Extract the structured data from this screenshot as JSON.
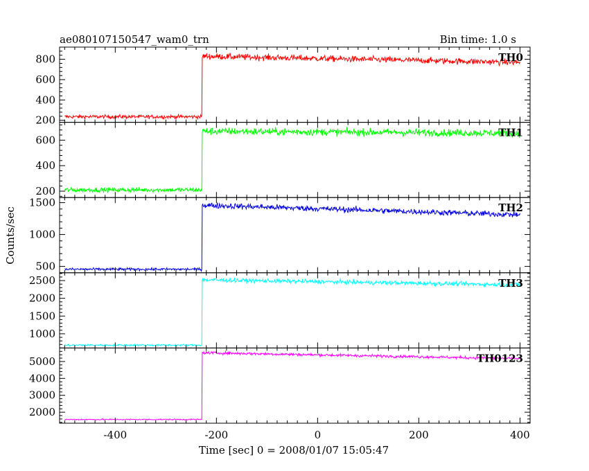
{
  "title": "ae080107150547_wam0_trn",
  "bin_time": "Bin time: 1.0 s",
  "xlabel": "Time [sec] 0 = 2008/01/07 15:05:47",
  "ylabel": "Counts/sec",
  "chart_data": {
    "type": "line",
    "xlim": [
      -510,
      420
    ],
    "x_ticks": [
      -400,
      -200,
      0,
      200,
      400
    ],
    "event_time": -228,
    "x_range": [
      -500,
      400
    ],
    "panels": [
      {
        "name": "TH0",
        "color": "#ff0000",
        "ylim": [
          180,
          920
        ],
        "yticks": [
          200,
          400,
          600,
          800
        ],
        "pre_level": 235,
        "post_start": 830,
        "post_end": 770,
        "noise": 30,
        "pre_noise": 18
      },
      {
        "name": "TH1",
        "color": "#00ff00",
        "ylim": [
          150,
          740
        ],
        "yticks": [
          200,
          400,
          600
        ],
        "pre_level": 210,
        "post_start": 670,
        "post_end": 655,
        "noise": 28,
        "pre_noise": 18
      },
      {
        "name": "TH2",
        "color": "#0000dd",
        "ylim": [
          400,
          1580
        ],
        "yticks": [
          500,
          1000,
          1500
        ],
        "pre_level": 455,
        "post_start": 1460,
        "post_end": 1310,
        "noise": 45,
        "pre_noise": 20
      },
      {
        "name": "TH3",
        "color": "#00ffff",
        "ylim": [
          600,
          2720
        ],
        "yticks": [
          1000,
          1500,
          2000,
          2500
        ],
        "pre_level": 680,
        "post_start": 2520,
        "post_end": 2380,
        "noise": 60,
        "pre_noise": 25
      },
      {
        "name": "TH0123",
        "color": "#ff00ff",
        "ylim": [
          1350,
          5800
        ],
        "yticks": [
          2000,
          3000,
          4000,
          5000
        ],
        "pre_level": 1570,
        "post_start": 5520,
        "post_end": 5170,
        "noise": 80,
        "pre_noise": 35
      }
    ]
  }
}
